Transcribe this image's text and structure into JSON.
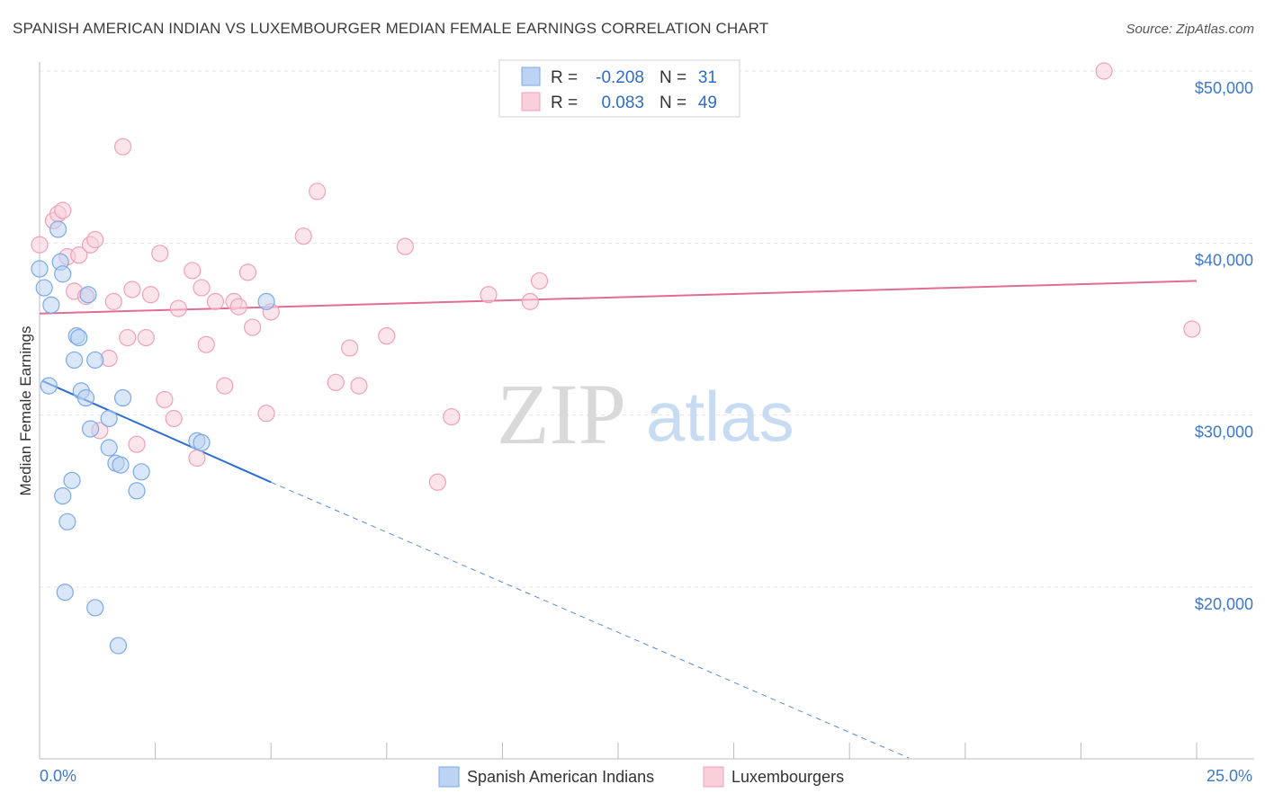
{
  "title": "SPANISH AMERICAN INDIAN VS LUXEMBOURGER MEDIAN FEMALE EARNINGS CORRELATION CHART",
  "source": "Source: ZipAtlas.com",
  "watermark": {
    "zip": "ZIP",
    "atlas": "atlas"
  },
  "colors": {
    "blue": "#7aaae8",
    "blue_fill": "#bcd3f3",
    "pink": "#f0a0b8",
    "pink_fill": "#f8cfdb",
    "blue_line": "#2d6fd0",
    "pink_line": "#e26d93",
    "grid": "#e3e3e3"
  },
  "stats": [
    {
      "r_label": "R =",
      "r": "-0.208",
      "n_label": "N =",
      "n": "31"
    },
    {
      "r_label": "R =",
      "r": "0.083",
      "n_label": "N =",
      "n": "49"
    }
  ],
  "chart_data": {
    "type": "scatter",
    "title": "SPANISH AMERICAN INDIAN VS LUXEMBOURGER MEDIAN FEMALE EARNINGS CORRELATION CHART",
    "xlabel": "",
    "ylabel": "Median Female Earnings",
    "xlim": [
      0,
      25
    ],
    "ylim": [
      10000,
      51000
    ],
    "x_tick_labels": [
      "0.0%",
      "25.0%"
    ],
    "y_ticks": [
      20000,
      30000,
      40000,
      50000
    ],
    "y_tick_labels": [
      "$20,000",
      "$30,000",
      "$40,000",
      "$50,000"
    ],
    "series": [
      {
        "name": "Spanish American Indians",
        "color": "blue",
        "trend": {
          "x0": 0.05,
          "y0": 32000,
          "x1": 5.0,
          "y1": 26100,
          "dash_to_x": 25,
          "dash_to_y": 2300
        },
        "points": [
          [
            0.0,
            38500
          ],
          [
            0.1,
            37400
          ],
          [
            0.2,
            31700
          ],
          [
            0.25,
            36400
          ],
          [
            0.45,
            38900
          ],
          [
            0.4,
            40800
          ],
          [
            0.5,
            38200
          ],
          [
            0.5,
            25300
          ],
          [
            0.6,
            23800
          ],
          [
            0.55,
            19700
          ],
          [
            0.7,
            26200
          ],
          [
            0.75,
            33200
          ],
          [
            0.8,
            34600
          ],
          [
            0.85,
            34500
          ],
          [
            0.9,
            31400
          ],
          [
            1.0,
            31000
          ],
          [
            1.05,
            37000
          ],
          [
            1.1,
            29200
          ],
          [
            1.2,
            33200
          ],
          [
            1.2,
            18800
          ],
          [
            1.5,
            28100
          ],
          [
            1.5,
            29800
          ],
          [
            1.65,
            27200
          ],
          [
            1.75,
            27100
          ],
          [
            1.8,
            31000
          ],
          [
            1.7,
            16600
          ],
          [
            2.1,
            25600
          ],
          [
            2.2,
            26700
          ],
          [
            3.4,
            28500
          ],
          [
            3.5,
            28400
          ],
          [
            4.9,
            36600
          ]
        ]
      },
      {
        "name": "Luxembourgers",
        "color": "pink",
        "trend": {
          "x0": 0,
          "y0": 35900,
          "x1": 25,
          "y1": 37800
        },
        "points": [
          [
            0.0,
            39900
          ],
          [
            0.3,
            41300
          ],
          [
            0.4,
            41700
          ],
          [
            0.5,
            41900
          ],
          [
            0.6,
            39200
          ],
          [
            0.75,
            37200
          ],
          [
            0.85,
            39300
          ],
          [
            1.0,
            36900
          ],
          [
            1.1,
            39900
          ],
          [
            1.2,
            40200
          ],
          [
            1.3,
            29100
          ],
          [
            1.5,
            33300
          ],
          [
            1.6,
            36600
          ],
          [
            1.8,
            45600
          ],
          [
            1.9,
            34500
          ],
          [
            2.0,
            37300
          ],
          [
            2.1,
            28300
          ],
          [
            2.3,
            34500
          ],
          [
            2.4,
            37000
          ],
          [
            2.6,
            39400
          ],
          [
            2.7,
            30900
          ],
          [
            2.9,
            29800
          ],
          [
            3.0,
            36200
          ],
          [
            3.3,
            38400
          ],
          [
            3.4,
            27500
          ],
          [
            3.5,
            37400
          ],
          [
            3.6,
            34100
          ],
          [
            3.8,
            36600
          ],
          [
            4.0,
            31700
          ],
          [
            4.2,
            36600
          ],
          [
            4.3,
            36300
          ],
          [
            4.5,
            38300
          ],
          [
            4.6,
            35100
          ],
          [
            4.9,
            30100
          ],
          [
            5.0,
            36000
          ],
          [
            5.7,
            40400
          ],
          [
            6.0,
            43000
          ],
          [
            6.4,
            31900
          ],
          [
            6.7,
            33900
          ],
          [
            6.9,
            31700
          ],
          [
            7.5,
            34600
          ],
          [
            7.9,
            39800
          ],
          [
            8.6,
            26100
          ],
          [
            8.9,
            29900
          ],
          [
            9.7,
            37000
          ],
          [
            10.6,
            36600
          ],
          [
            10.8,
            37800
          ],
          [
            23.0,
            50000
          ],
          [
            24.9,
            35000
          ]
        ]
      }
    ]
  }
}
